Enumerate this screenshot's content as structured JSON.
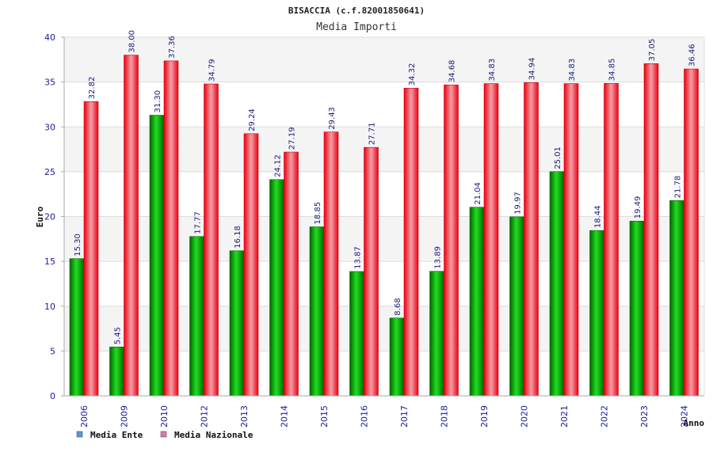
{
  "chart_data": {
    "type": "bar",
    "title": "BISACCIA (c.f.82001850641)",
    "subtitle": "Media Importi",
    "xlabel": "Anno",
    "ylabel": "Euro",
    "ylim": [
      0,
      40
    ],
    "yticks": [
      0,
      5,
      10,
      15,
      20,
      25,
      30,
      35,
      40
    ],
    "grid": true,
    "legend_position": "bottom-left",
    "categories": [
      "2006",
      "2009",
      "2010",
      "2012",
      "2013",
      "2014",
      "2015",
      "2016",
      "2017",
      "2018",
      "2019",
      "2020",
      "2021",
      "2022",
      "2023",
      "2024"
    ],
    "series": [
      {
        "name": "Media Ente",
        "color": "#00aa00",
        "legend_color": "#5599dd",
        "values": [
          15.3,
          5.45,
          31.3,
          17.77,
          16.18,
          24.12,
          18.85,
          13.87,
          8.68,
          13.89,
          21.04,
          19.97,
          25.01,
          18.44,
          19.49,
          21.78
        ],
        "labels": [
          "15.30",
          "5.45",
          "31.30",
          "17.77",
          "16.18",
          "24.12",
          "18.85",
          "13.87",
          "8.68",
          "13.89",
          "21.04",
          "19.97",
          "25.01",
          "18.44",
          "19.49",
          "21.78"
        ]
      },
      {
        "name": "Media Nazionale",
        "color": "#ee1122",
        "legend_color": "#dd77aa",
        "values": [
          32.82,
          38.0,
          37.36,
          34.79,
          29.24,
          27.19,
          29.43,
          27.71,
          34.32,
          34.68,
          34.83,
          34.94,
          34.83,
          34.85,
          37.05,
          36.46
        ],
        "labels": [
          "32.82",
          "38.00",
          "37.36",
          "34.79",
          "29.24",
          "27.19",
          "29.43",
          "27.71",
          "34.32",
          "34.68",
          "34.83",
          "34.94",
          "34.83",
          "34.85",
          "37.05",
          "36.46"
        ]
      }
    ]
  }
}
